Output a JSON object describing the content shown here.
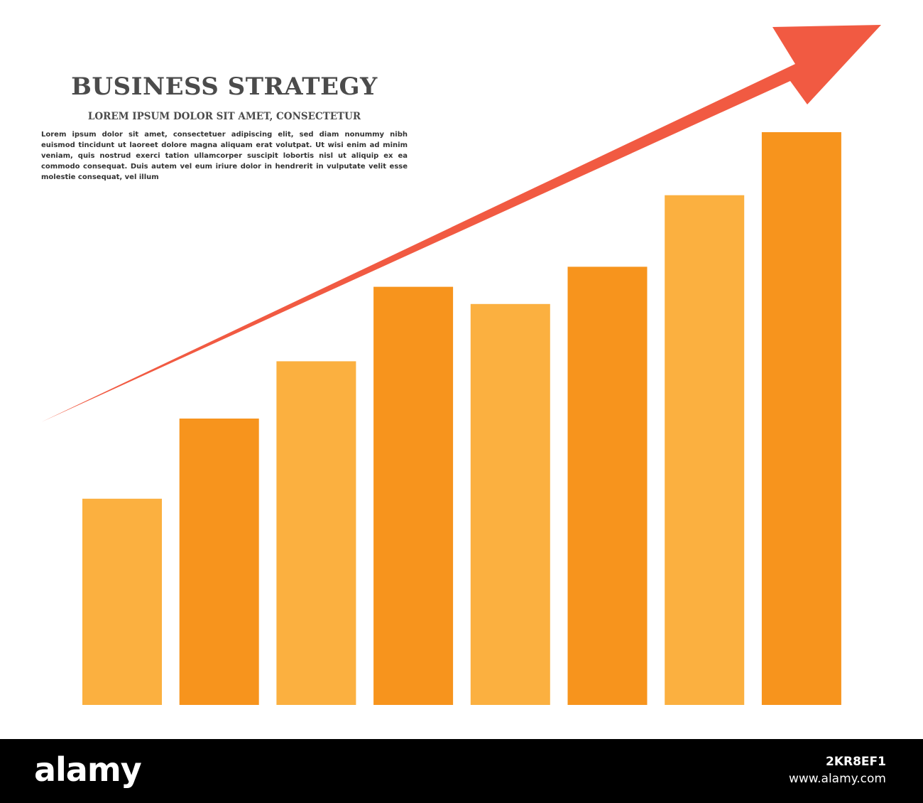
{
  "header": {
    "title": "BUSINESS STRATEGY",
    "subtitle": "LOREM IPSUM DOLOR SIT AMET, CONSECTETUR",
    "body": "Lorem ipsum dolor sit amet, consectetuer adipiscing elit, sed diam nonummy nibh euismod tincidunt ut laoreet dolore magna aliquam erat volutpat. Ut wisi enim ad minim veniam, quis nostrud exerci tation ullamcorper suscipit lobortis nisl ut aliquip ex ea commodo consequat. Duis autem vel eum iriure dolor in hendrerit in vulputate velit esse molestie consequat, vel illum"
  },
  "chart_data": {
    "type": "bar",
    "categories": [
      "",
      "",
      "",
      "",
      "",
      "",
      "",
      ""
    ],
    "values": [
      36,
      50,
      60,
      73,
      70,
      76.5,
      89,
      100
    ],
    "ylim": [
      0,
      100
    ],
    "grid": false,
    "axes_visible": false,
    "annotation": "upward trend arrow",
    "colors": {
      "bar_light": "#fbb040",
      "bar_dark": "#f7941d",
      "arrow": "#f15a42"
    }
  },
  "watermark": {
    "logo": "alamy",
    "image_id": "2KR8EF1",
    "url": "www.alamy.com"
  }
}
